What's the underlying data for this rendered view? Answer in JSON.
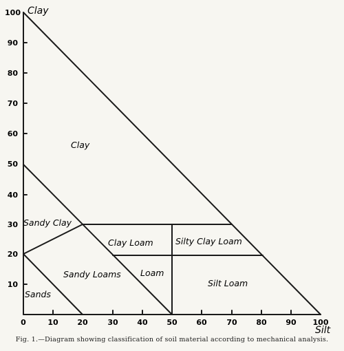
{
  "axes": {
    "y_title": "Clay",
    "x_title": "Silt",
    "y_ticks": [
      "100",
      "90",
      "80",
      "70",
      "60",
      "50",
      "40",
      "30",
      "20",
      "10"
    ],
    "x_ticks": [
      "0",
      "10",
      "20",
      "30",
      "40",
      "50",
      "60",
      "70",
      "80",
      "90",
      "100"
    ]
  },
  "regions": {
    "clay": "Clay",
    "sandy_clay": "Sandy Clay",
    "clay_loam": "Clay Loam",
    "silty_clay_loam": "Silty Clay Loam",
    "sandy_loams": "Sandy Loams",
    "loam": "Loam",
    "silt_loam": "Silt Loam",
    "sands": "Sands"
  },
  "caption": "Fig. 1.—Diagram showing classification of soil material according to mechanical analysis.",
  "colors": {
    "background": "#f7f6f1",
    "ink": "#1a1a1a"
  }
}
